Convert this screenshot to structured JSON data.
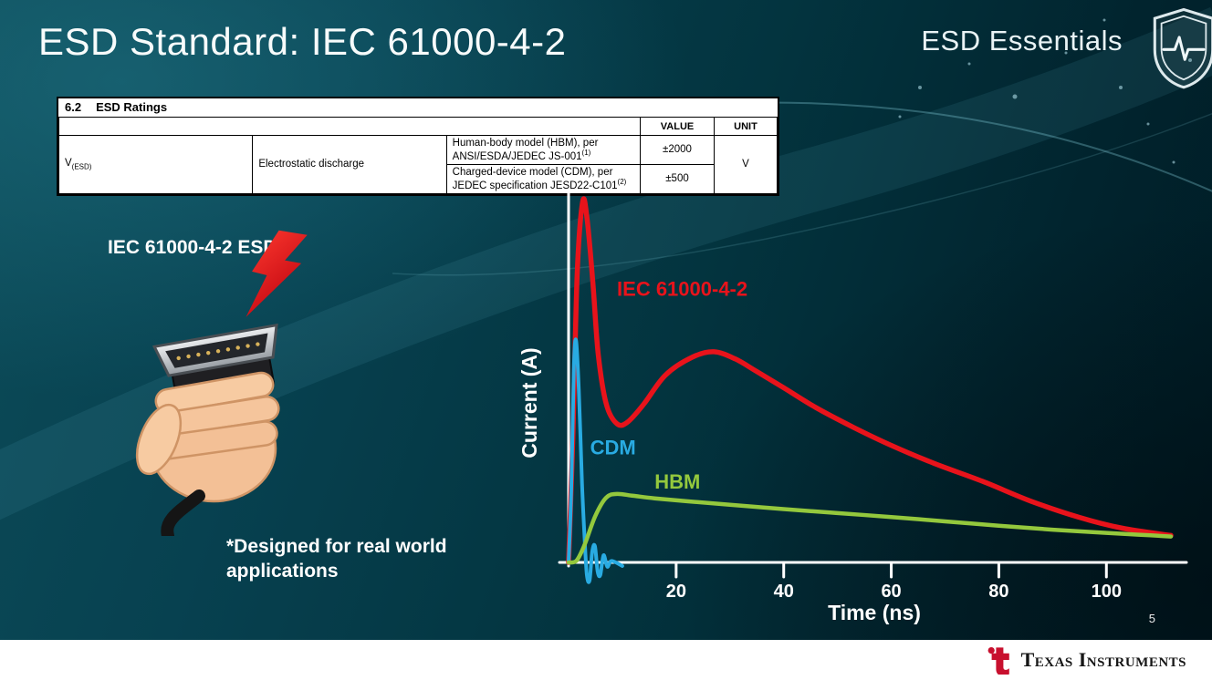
{
  "slide": {
    "title": "ESD Standard: IEC 61000-4-2",
    "series_label": "ESD Essentials",
    "page_number": "5"
  },
  "ratings_table": {
    "section_number": "6.2",
    "section_title": "ESD Ratings",
    "col_value": "VALUE",
    "col_unit": "UNIT",
    "param_symbol": "V",
    "param_subscript": "(ESD)",
    "param_name": "Electrostatic discharge",
    "rows": [
      {
        "description": "Human-body model (HBM), per ANSI/ESDA/JEDEC JS-001",
        "footnote_ref": "(1)",
        "value": "±2000"
      },
      {
        "description": "Charged-device model (CDM), per JEDEC specification JESD22-C101",
        "footnote_ref": "(2)",
        "value": "±500"
      }
    ],
    "unit": "V"
  },
  "left_panel": {
    "connector_label": "IEC 61000-4-2 ESD",
    "footnote": "*Designed for real world applications"
  },
  "footer": {
    "brand": "Texas Instruments"
  },
  "chart_data": {
    "type": "line",
    "title": "",
    "xlabel": "Time (ns)",
    "ylabel": "Current (A)",
    "axis": {
      "x_max": 112,
      "y_max": 1.0,
      "xticks": [
        20,
        40,
        60,
        80,
        100
      ],
      "color": "#ffffff",
      "grid": false
    },
    "series": [
      {
        "name": "IEC 61000-4-2",
        "color": "#e8131b",
        "stroke_width": 5.5,
        "points": [
          [
            0,
            0
          ],
          [
            0.8,
            0.35
          ],
          [
            1.6,
            0.8
          ],
          [
            2.6,
            1.0
          ],
          [
            3.4,
            0.96
          ],
          [
            4.5,
            0.78
          ],
          [
            5.5,
            0.58
          ],
          [
            7,
            0.44
          ],
          [
            9,
            0.385
          ],
          [
            11,
            0.39
          ],
          [
            14,
            0.44
          ],
          [
            18,
            0.52
          ],
          [
            23,
            0.57
          ],
          [
            27,
            0.585
          ],
          [
            31,
            0.565
          ],
          [
            35,
            0.53
          ],
          [
            40,
            0.485
          ],
          [
            46,
            0.43
          ],
          [
            53,
            0.375
          ],
          [
            60,
            0.325
          ],
          [
            68,
            0.275
          ],
          [
            77,
            0.225
          ],
          [
            86,
            0.17
          ],
          [
            95,
            0.125
          ],
          [
            103,
            0.095
          ],
          [
            112,
            0.075
          ]
        ]
      },
      {
        "name": "CDM",
        "color": "#29abe2",
        "stroke_width": 4,
        "points": [
          [
            0,
            0
          ],
          [
            0.5,
            0.2
          ],
          [
            1,
            0.55
          ],
          [
            1.4,
            0.615
          ],
          [
            1.9,
            0.48
          ],
          [
            2.5,
            0.22
          ],
          [
            3,
            0.06
          ],
          [
            3.4,
            -0.035
          ],
          [
            3.9,
            -0.05
          ],
          [
            4.4,
            0.03
          ],
          [
            4.9,
            0.045
          ],
          [
            5.4,
            -0.025
          ],
          [
            5.9,
            -0.035
          ],
          [
            6.5,
            0.02
          ],
          [
            7.2,
            -0.012
          ],
          [
            8,
            0.004
          ],
          [
            10,
            -0.01
          ]
        ]
      },
      {
        "name": "HBM",
        "color": "#94c83d",
        "stroke_width": 4.5,
        "points": [
          [
            0,
            0
          ],
          [
            1.5,
            0.005
          ],
          [
            3,
            0.05
          ],
          [
            5,
            0.13
          ],
          [
            7,
            0.18
          ],
          [
            9,
            0.19
          ],
          [
            12,
            0.185
          ],
          [
            16,
            0.178
          ],
          [
            22,
            0.17
          ],
          [
            30,
            0.16
          ],
          [
            40,
            0.148
          ],
          [
            50,
            0.137
          ],
          [
            60,
            0.126
          ],
          [
            70,
            0.114
          ],
          [
            80,
            0.102
          ],
          [
            90,
            0.091
          ],
          [
            100,
            0.082
          ],
          [
            106,
            0.077
          ],
          [
            112,
            0.072
          ]
        ]
      }
    ],
    "curve_labels": [
      {
        "text": "IEC 61000-4-2",
        "color": "#e8131b",
        "x": 9,
        "y": 0.74
      },
      {
        "text": "CDM",
        "color": "#29abe2",
        "x": 4.0,
        "y": 0.3
      },
      {
        "text": "HBM",
        "color": "#94c83d",
        "x": 16,
        "y": 0.205
      }
    ]
  }
}
